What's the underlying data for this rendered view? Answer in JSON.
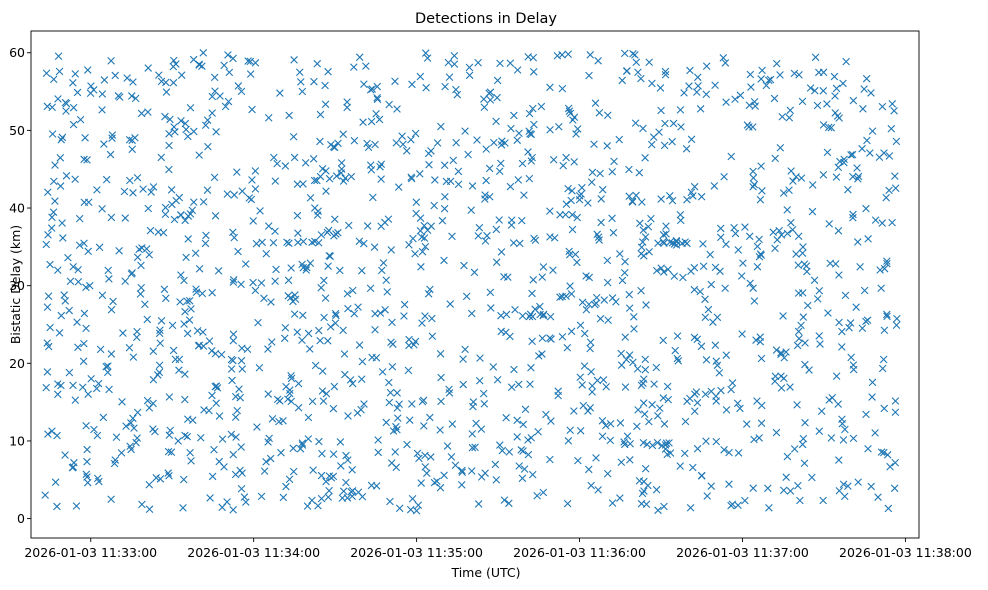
{
  "chart_data": {
    "type": "scatter",
    "title": "Detections in Delay",
    "xlabel": "Time (UTC)",
    "ylabel": "Bistatic Delay (km)",
    "marker": "x",
    "color": "#1f77b4",
    "grid": false,
    "x_start": "2026-01-03 11:32:43",
    "x_end": "2026-01-03 11:37:57",
    "xlim": [
      "2026-01-03 11:32:38",
      "2026-01-03 11:38:05"
    ],
    "ylim": [
      -2.5,
      62.8
    ],
    "x_ticks": [
      "2026-01-03 11:33:00",
      "2026-01-03 11:34:00",
      "2026-01-03 11:35:00",
      "2026-01-03 11:36:00",
      "2026-01-03 11:37:00",
      "2026-01-03 11:38:00"
    ],
    "y_ticks": [
      0,
      10,
      20,
      30,
      40,
      50,
      60
    ],
    "point_count": 1500,
    "y_range": [
      1,
      60
    ]
  }
}
